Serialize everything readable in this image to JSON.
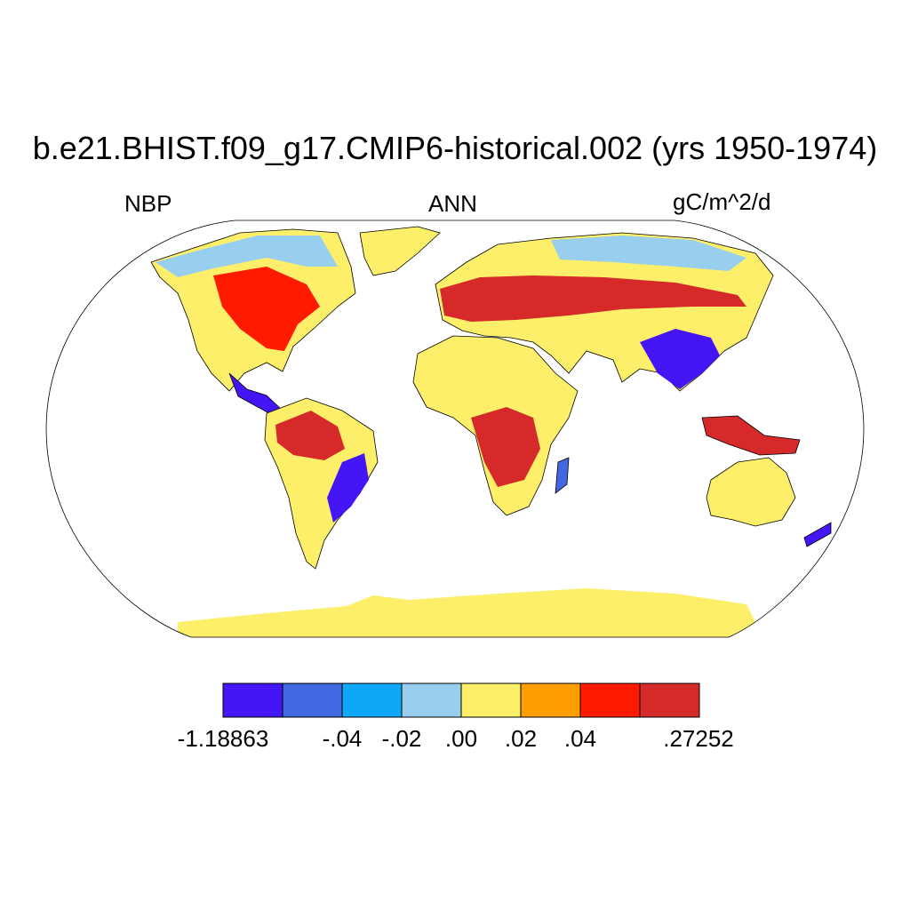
{
  "title": "b.e21.BHIST.f09_g17.CMIP6-historical.002 (yrs 1950-1974)",
  "left_label": "NBP",
  "center_label": "ANN",
  "right_label": "gC/m^2/d",
  "colorbar": {
    "colors": [
      "#4416f5",
      "#4169e1",
      "#0fa8f8",
      "#98cfee",
      "#fdef6a",
      "#ff9e00",
      "#ff1a00",
      "#d62a2a"
    ],
    "labels": [
      "-1.18863",
      "-.04",
      "-.02",
      ".00",
      ".02",
      ".04",
      ".27252"
    ]
  },
  "map": {
    "projection": "Robinson",
    "ocean_color": "#ffffff",
    "outline_color": "#000000"
  }
}
